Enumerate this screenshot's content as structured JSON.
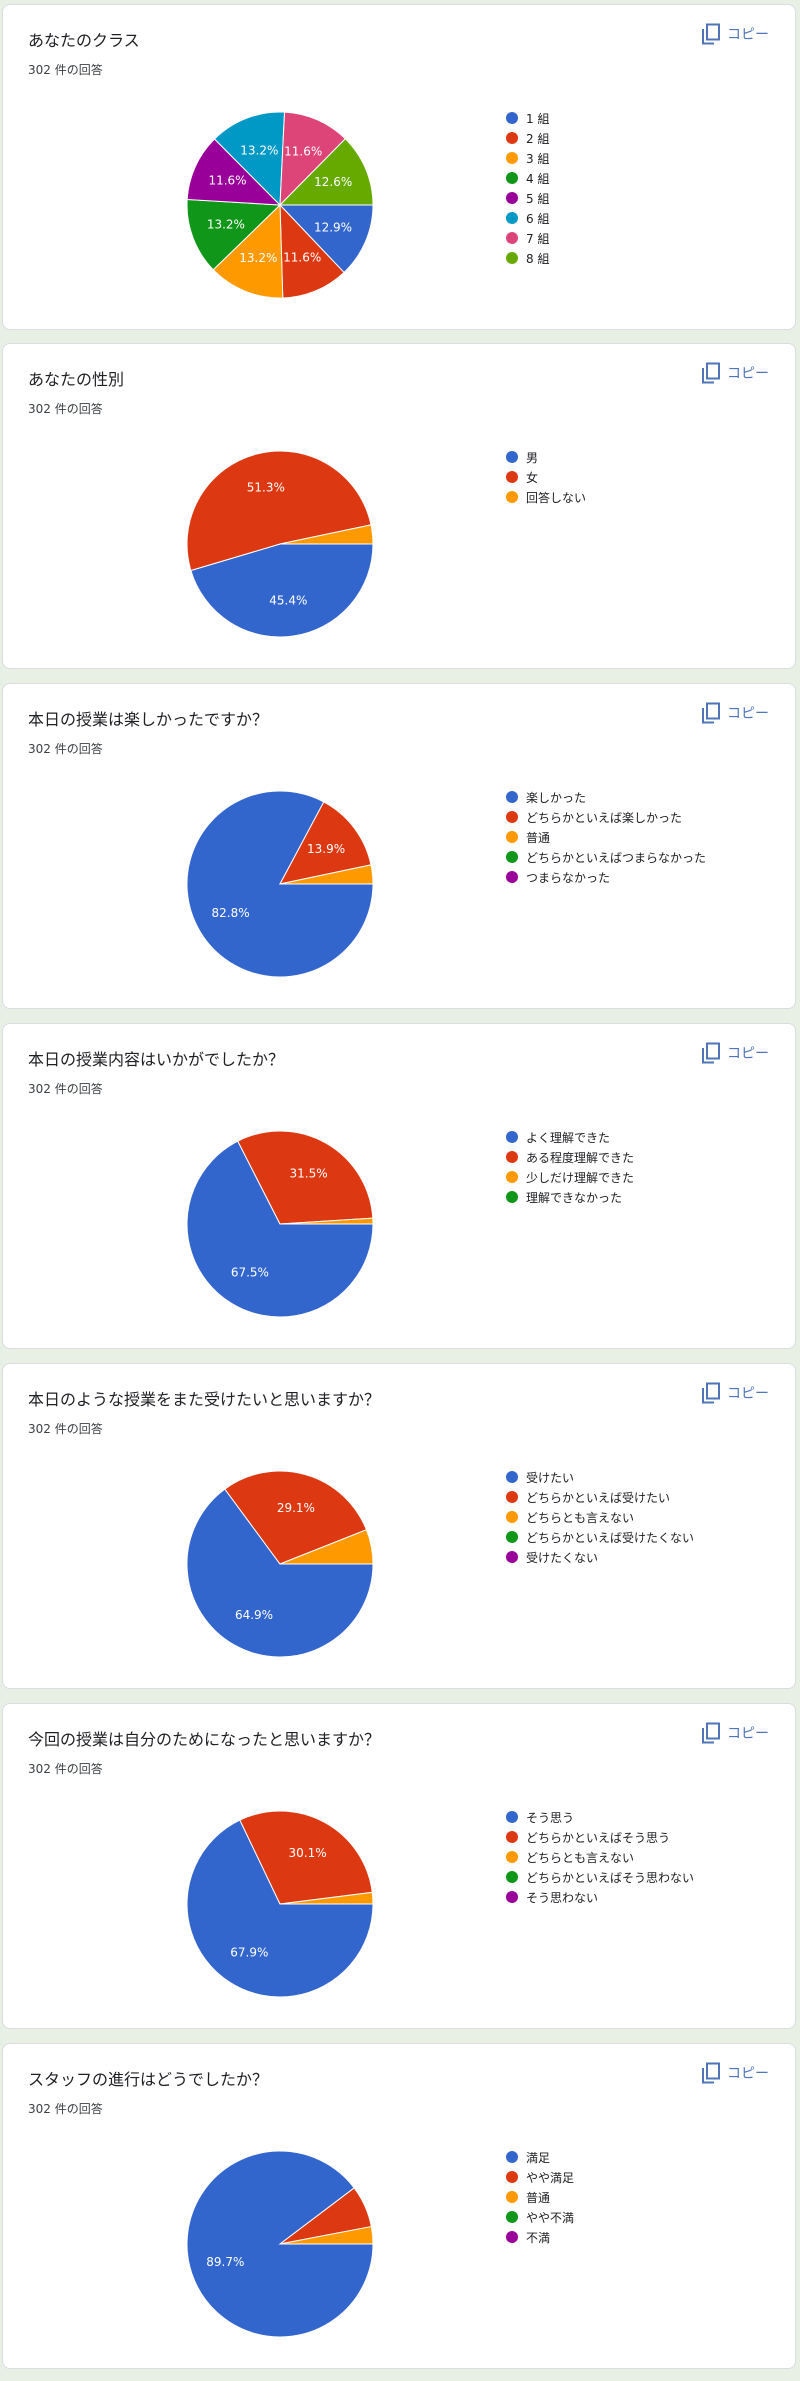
{
  "colors": [
    "#3366cc",
    "#dc3912",
    "#ff9900",
    "#109618",
    "#990099",
    "#0099c6",
    "#dd4477",
    "#66aa00"
  ],
  "copy_label": "コピー",
  "chart_data": [
    {
      "type": "pie",
      "title": "あなたのクラス",
      "count_label": "302 件の回答",
      "categories": [
        "1 組",
        "2 組",
        "3 組",
        "4 組",
        "5 組",
        "6 組",
        "7 組",
        "8 組"
      ],
      "values": [
        12.9,
        11.6,
        13.2,
        13.2,
        11.6,
        13.2,
        11.6,
        12.6
      ],
      "value_labels": [
        "12.9%",
        "11.6%",
        "13.2%",
        "13.2%",
        "11.6%",
        "13.2%",
        "11.6%",
        "12.6%"
      ],
      "legend_position": "right"
    },
    {
      "type": "pie",
      "title": "あなたの性別",
      "count_label": "302 件の回答",
      "categories": [
        "男",
        "女",
        "回答しない"
      ],
      "values": [
        45.4,
        51.3,
        3.3
      ],
      "value_labels": [
        "45.4%",
        "51.3%",
        ""
      ],
      "legend_position": "right"
    },
    {
      "type": "pie",
      "title": "本日の授業は楽しかったですか？",
      "count_label": "302 件の回答",
      "categories": [
        "楽しかった",
        "どちらかといえば楽しかった",
        "普通",
        "どちらかといえばつまらなかった",
        "つまらなかった"
      ],
      "values": [
        82.8,
        13.9,
        3.3,
        0,
        0
      ],
      "value_labels": [
        "82.8%",
        "13.9%",
        "",
        "",
        ""
      ],
      "legend_position": "right"
    },
    {
      "type": "pie",
      "title": "本日の授業内容はいかがでしたか？",
      "count_label": "302 件の回答",
      "categories": [
        "よく理解できた",
        "ある程度理解できた",
        "少しだけ理解できた",
        "理解できなかった"
      ],
      "values": [
        67.5,
        31.5,
        1.0,
        0
      ],
      "value_labels": [
        "67.5%",
        "31.5%",
        "",
        ""
      ],
      "legend_position": "right"
    },
    {
      "type": "pie",
      "title": "本日のような授業をまた受けたいと思いますか？",
      "count_label": "302 件の回答",
      "categories": [
        "受けたい",
        "どちらかといえば受けたい",
        "どちらとも言えない",
        "どちらかといえば受けたくない",
        "受けたくない"
      ],
      "values": [
        64.9,
        29.1,
        6.0,
        0,
        0
      ],
      "value_labels": [
        "64.9%",
        "29.1%",
        "",
        "",
        ""
      ],
      "legend_position": "right"
    },
    {
      "type": "pie",
      "title": "今回の授業は自分のためになったと思いますか？",
      "count_label": "302 件の回答",
      "categories": [
        "そう思う",
        "どちらかといえばそう思う",
        "どちらとも言えない",
        "どちらかといえばそう思わない",
        "そう思わない"
      ],
      "values": [
        67.9,
        30.1,
        2.0,
        0,
        0
      ],
      "value_labels": [
        "67.9%",
        "30.1%",
        "",
        "",
        ""
      ],
      "legend_position": "right"
    },
    {
      "type": "pie",
      "title": "スタッフの進行はどうでしたか？",
      "count_label": "302 件の回答",
      "categories": [
        "満足",
        "やや満足",
        "普通",
        "やや不満",
        "不満"
      ],
      "values": [
        89.7,
        7.3,
        3.0,
        0,
        0
      ],
      "value_labels": [
        "89.7%",
        "",
        "",
        "",
        ""
      ],
      "legend_position": "right"
    }
  ]
}
